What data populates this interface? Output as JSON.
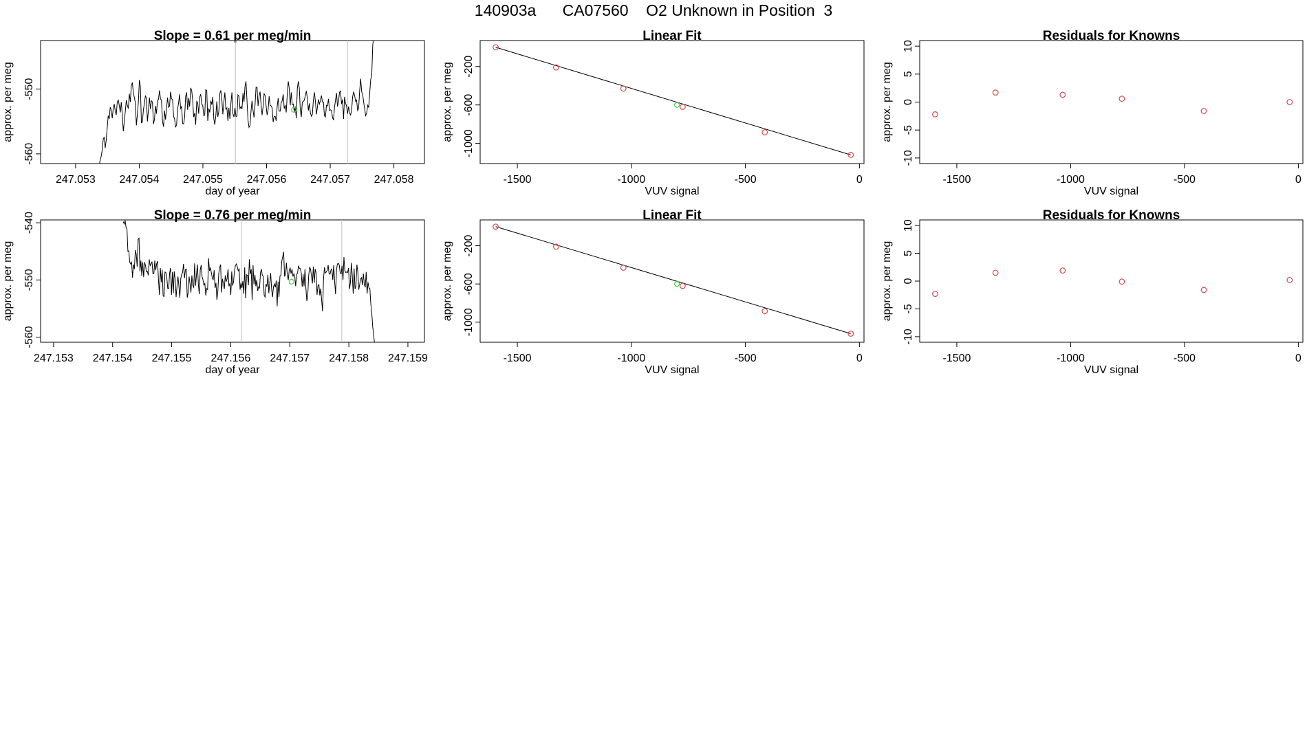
{
  "header": {
    "title": "140903a      CA07560    O2 Unknown in Position  3"
  },
  "chart_data": [
    {
      "id": "slope1",
      "type": "line",
      "title": "Slope =  0.61  per meg/min",
      "xlabel": "day of year",
      "ylabel": "approx. per meg",
      "xlim": [
        247.05245,
        247.05848
      ],
      "ylim": [
        -561.5,
        -542.5
      ],
      "xticks": [
        "247.053",
        "247.054",
        "247.055",
        "247.056",
        "247.057",
        "247.058"
      ],
      "yticks": [
        "-550",
        "-560"
      ],
      "vlines": [
        247.05551,
        247.05727
      ],
      "unknown_point": [
        247.05643,
        -553.2
      ],
      "x0": 247.05337,
      "dx": 1.58e-05,
      "y": [
        -561.8,
        -561.0,
        -560.4,
        -559.5,
        -557.8,
        -557.4,
        -559.1,
        -557.9,
        -556.0,
        -554.1,
        -554.6,
        -552.8,
        -553.2,
        -554.5,
        -553.0,
        -552.3,
        -553.4,
        -554.0,
        -552.0,
        -551.7,
        -552.5,
        -553.6,
        -552.0,
        -554.0,
        -556.5,
        -555.0,
        -553.4,
        -551.7,
        -552.5,
        -553.0,
        -550.7,
        -552.0,
        -549.4,
        -549.0,
        -550.6,
        -551.3,
        -552.1,
        -555.6,
        -553.9,
        -552.0,
        -548.6,
        -549.6,
        -555.2,
        -555.1,
        -553.2,
        -552.2,
        -551.0,
        -551.4,
        -555.0,
        -553.3,
        -551.3,
        -553.1,
        -551.8,
        -552.0,
        -555.4,
        -554.7,
        -552.6,
        -553.8,
        -551.7,
        -551.6,
        -550.2,
        -551.5,
        -551.7,
        -555.0,
        -555.8,
        -553.3,
        -554.7,
        -553.0,
        -551.3,
        -552.8,
        -552.6,
        -550.4,
        -551.5,
        -551.6,
        -554.2,
        -554.6,
        -555.9,
        -555.5,
        -553.1,
        -552.1,
        -550.8,
        -553.0,
        -552.7,
        -555.3,
        -555.4,
        -554.3,
        -551.1,
        -550.5,
        -553.2,
        -551.4,
        -552.7,
        -549.8,
        -550.2,
        -551.7,
        -554.3,
        -553.7,
        -555.5,
        -551.9,
        -552.1,
        -553.8,
        -551.2,
        -550.8,
        -552.3,
        -552.5,
        -554.1,
        -554.0,
        -550.1,
        -550.2,
        -554.9,
        -553.0,
        -553.6,
        -551.8,
        -552.4,
        -551.2,
        -554.6,
        -555.5,
        -554.1,
        -551.9,
        -554.3,
        -553.4,
        -550.7,
        -550.2,
        -551.7,
        -553.9,
        -552.0,
        -550.5,
        -553.1,
        -552.9,
        -554.9,
        -552.9,
        -554.6,
        -552.2,
        -550.5,
        -553.8,
        -554.3,
        -552.9,
        -554.2,
        -554.2,
        -550.9,
        -551.1,
        -553.0,
        -552.7,
        -553.1,
        -550.6,
        -552.0,
        -549.6,
        -548.8,
        -551.8,
        -554.8,
        -555.9,
        -555.6,
        -553.4,
        -551.8,
        -553.3,
        -554.4,
        -552.4,
        -549.7,
        -549.7,
        -552.6,
        -551.1,
        -550.4,
        -552.4,
        -554.0,
        -552.7,
        -550.7,
        -551.0,
        -552.6,
        -554.0,
        -553.2,
        -551.1,
        -552.5,
        -552.6,
        -552.9,
        -555.1,
        -554.2,
        -554.2,
        -554.9,
        -552.7,
        -551.4,
        -553.4,
        -553.4,
        -552.1,
        -551.8,
        -550.8,
        -553.0,
        -552.5,
        -553.6,
        -550.9,
        -548.8,
        -549.9,
        -552.5,
        -550.5,
        -552.4,
        -552.3,
        -553.5,
        -552.7,
        -554.5,
        -550.0,
        -548.8,
        -549.8,
        -553.3,
        -554.3,
        -552.0,
        -551.9,
        -551.7,
        -551.0,
        -550.3,
        -551.4,
        -553.3,
        -552.2,
        -553.6,
        -554.2,
        -553.9,
        -551.7,
        -550.5,
        -551.8,
        -553.9,
        -552.8,
        -551.6,
        -552.3,
        -551.8,
        -551.0,
        -552.0,
        -552.0,
        -554.1,
        -554.3,
        -552.5,
        -552.6,
        -551.5,
        -553.3,
        -553.2,
        -553.3,
        -554.4,
        -554.8,
        -552.8,
        -551.7,
        -550.6,
        -552.7,
        -551.8,
        -550.5,
        -550.3,
        -552.3,
        -551.6,
        -554.6,
        -551.2,
        -552.2,
        -552.6,
        -553.8,
        -552.7,
        -553.7,
        -554.0,
        -553.3,
        -551.2,
        -550.4,
        -551.0,
        -551.9,
        -551.7,
        -553.3,
        -553.0,
        -550.3,
        -548.4,
        -550.4,
        -550.8,
        -552.0,
        -553.1,
        -554.1,
        -553.7,
        -552.5,
        -552.8,
        -550.6,
        -548.5,
        -547.9,
        -543.3,
        -541.7
      ]
    },
    {
      "id": "linfit1",
      "type": "scatter",
      "title": "Linear Fit",
      "xlabel": "VUV signal",
      "ylabel": "approx. per meg",
      "xlim": [
        -1663,
        20
      ],
      "ylim": [
        -1210,
        70
      ],
      "xticks": [
        -1500,
        -1000,
        -500,
        0
      ],
      "yticks": [
        -200,
        -600,
        -1000
      ],
      "fit": [
        [
          -1595,
          0
        ],
        [
          -38,
          -1120
        ]
      ],
      "points": [
        [
          -1595,
          0
        ],
        [
          -1330,
          -210
        ],
        [
          -1035,
          -430
        ],
        [
          -775,
          -620
        ],
        [
          -415,
          -885
        ],
        [
          -38,
          -1120
        ]
      ],
      "unknown_point": [
        -800,
        -600
      ]
    },
    {
      "id": "resid1",
      "type": "scatter",
      "title": "Residuals for Knowns",
      "xlabel": "VUV signal",
      "ylabel": "approx. per meg",
      "xlim": [
        -1663,
        20
      ],
      "ylim": [
        -11,
        11
      ],
      "xticks": [
        -1500,
        -1000,
        -500,
        0
      ],
      "yticks": [
        10,
        5,
        0,
        -5,
        -10
      ],
      "points": [
        [
          -1595,
          -2.2
        ],
        [
          -1330,
          1.7
        ],
        [
          -1035,
          1.3
        ],
        [
          -775,
          0.6
        ],
        [
          -415,
          -1.6
        ],
        [
          -38,
          0
        ]
      ]
    },
    {
      "id": "slope2",
      "type": "line",
      "title": "Slope =  0.76  per meg/min",
      "xlabel": "day of year",
      "ylabel": "approx. per meg",
      "xlim": [
        247.15278,
        247.15928
      ],
      "ylim": [
        -560.9,
        -539.5
      ],
      "xticks": [
        "247.153",
        "247.154",
        "247.155",
        "247.156",
        "247.157",
        "247.158",
        "247.159"
      ],
      "yticks": [
        "-540",
        "-550",
        "-560"
      ],
      "vlines": [
        247.15618,
        247.15788
      ],
      "unknown_point": [
        247.15703,
        -550.3
      ],
      "x0": 247.15418,
      "dx": 1.57e-05,
      "y": [
        -539.8,
        -540.2,
        -539.6,
        -540.8,
        -541.1,
        -545.0,
        -544.9,
        -546.9,
        -547.2,
        -546.9,
        -549.6,
        -547.3,
        -548.1,
        -544.8,
        -545.5,
        -547.7,
        -542.9,
        -542.7,
        -548.5,
        -546.6,
        -549.3,
        -546.9,
        -549.5,
        -546.9,
        -547.5,
        -548.6,
        -548.5,
        -549.2,
        -546.4,
        -547.5,
        -547.2,
        -546.8,
        -548.9,
        -548.9,
        -546.6,
        -548.3,
        -547.2,
        -546.7,
        -550.0,
        -552.6,
        -547.9,
        -550.4,
        -548.2,
        -552.8,
        -552.9,
        -548.6,
        -548.7,
        -549.7,
        -551.5,
        -551.5,
        -548.8,
        -547.9,
        -552.6,
        -548.6,
        -552.3,
        -548.5,
        -549.9,
        -553.0,
        -551.0,
        -549.4,
        -551.0,
        -553.1,
        -549.8,
        -549.0,
        -548.7,
        -547.2,
        -549.7,
        -548.2,
        -548.1,
        -553.1,
        -552.2,
        -549.4,
        -550.7,
        -552.2,
        -549.2,
        -551.0,
        -551.3,
        -547.1,
        -551.0,
        -549.0,
        -547.3,
        -550.8,
        -552.5,
        -548.3,
        -547.4,
        -549.4,
        -550.0,
        -550.9,
        -550.6,
        -552.7,
        -551.5,
        -551.7,
        -546.2,
        -548.4,
        -547.9,
        -548.7,
        -549.6,
        -550.0,
        -548.3,
        -551.4,
        -550.5,
        -553.5,
        -552.0,
        -548.9,
        -547.8,
        -547.3,
        -552.2,
        -549.8,
        -550.6,
        -551.6,
        -549.2,
        -550.3,
        -549.8,
        -548.1,
        -551.1,
        -550.6,
        -552.6,
        -548.5,
        -551.0,
        -550.2,
        -548.3,
        -547.5,
        -547.2,
        -547.7,
        -548.4,
        -548.1,
        -551.7,
        -550.5,
        -551.4,
        -550.2,
        -552.4,
        -547.8,
        -553.2,
        -549.1,
        -549.2,
        -550.9,
        -546.4,
        -549.0,
        -548.1,
        -553.5,
        -547.4,
        -550.8,
        -549.1,
        -551.1,
        -550.0,
        -551.9,
        -551.2,
        -551.4,
        -548.7,
        -548.1,
        -549.2,
        -549.3,
        -552.7,
        -553.0,
        -550.7,
        -551.2,
        -549.1,
        -552.3,
        -550.6,
        -548.8,
        -551.6,
        -553.0,
        -551.2,
        -550.7,
        -551.3,
        -550.1,
        -554.6,
        -550.3,
        -553.0,
        -549.3,
        -549.2,
        -546.7,
        -545.9,
        -545.1,
        -549.4,
        -549.0,
        -547.0,
        -549.3,
        -550.0,
        -548.3,
        -547.9,
        -548.9,
        -548.1,
        -549.4,
        -548.9,
        -549.4,
        -551.1,
        -549.0,
        -548.8,
        -547.5,
        -548.0,
        -548.0,
        -548.8,
        -551.2,
        -549.0,
        -551.1,
        -548.1,
        -551.5,
        -553.7,
        -552.7,
        -549.2,
        -547.8,
        -548.1,
        -549.3,
        -550.6,
        -547.7,
        -550.5,
        -548.1,
        -548.8,
        -552.6,
        -551.0,
        -550.8,
        -552.7,
        -551.5,
        -553.6,
        -555.5,
        -549.8,
        -547.8,
        -548.8,
        -548.6,
        -548.3,
        -547.4,
        -548.9,
        -549.0,
        -548.3,
        -548.1,
        -550.0,
        -547.4,
        -550.3,
        -552.5,
        -548.2,
        -547.2,
        -547.1,
        -547.4,
        -548.8,
        -548.9,
        -547.5,
        -550.0,
        -546.0,
        -548.4,
        -548.7,
        -548.6,
        -548.7,
        -547.9,
        -551.6,
        -550.5,
        -547.0,
        -549.2,
        -552.4,
        -548.0,
        -551.6,
        -551.0,
        -547.3,
        -548.6,
        -551.7,
        -550.8,
        -549.8,
        -549.6,
        -550.9,
        -548.9,
        -550.8,
        -551.3,
        -548.6,
        -552.4,
        -550.4,
        -551.4,
        -551.5,
        -554.2,
        -555.7,
        -558.1,
        -559.6,
        -561.0
      ]
    },
    {
      "id": "linfit2",
      "type": "scatter",
      "title": "Linear Fit",
      "xlabel": "VUV signal",
      "ylabel": "approx. per meg",
      "xlim": [
        -1663,
        20
      ],
      "ylim": [
        -1210,
        70
      ],
      "xticks": [
        -1500,
        -1000,
        -500,
        0
      ],
      "yticks": [
        -200,
        -600,
        -1000
      ],
      "fit": [
        [
          -1595,
          0
        ],
        [
          -38,
          -1120
        ]
      ],
      "points": [
        [
          -1595,
          0
        ],
        [
          -1330,
          -210
        ],
        [
          -1035,
          -430
        ],
        [
          -775,
          -620
        ],
        [
          -415,
          -885
        ],
        [
          -38,
          -1120
        ]
      ],
      "unknown_point": [
        -800,
        -600
      ]
    },
    {
      "id": "resid2",
      "type": "scatter",
      "title": "Residuals for Knowns",
      "xlabel": "VUV signal",
      "ylabel": "approx. per meg",
      "xlim": [
        -1663,
        20
      ],
      "ylim": [
        -11,
        11
      ],
      "xticks": [
        -1500,
        -1000,
        -500,
        0
      ],
      "yticks": [
        10,
        5,
        0,
        -5,
        -10
      ],
      "points": [
        [
          -1595,
          -2.3
        ],
        [
          -1330,
          1.5
        ],
        [
          -1035,
          1.9
        ],
        [
          -775,
          -0.1
        ],
        [
          -415,
          -1.6
        ],
        [
          -38,
          0.2
        ]
      ]
    }
  ]
}
